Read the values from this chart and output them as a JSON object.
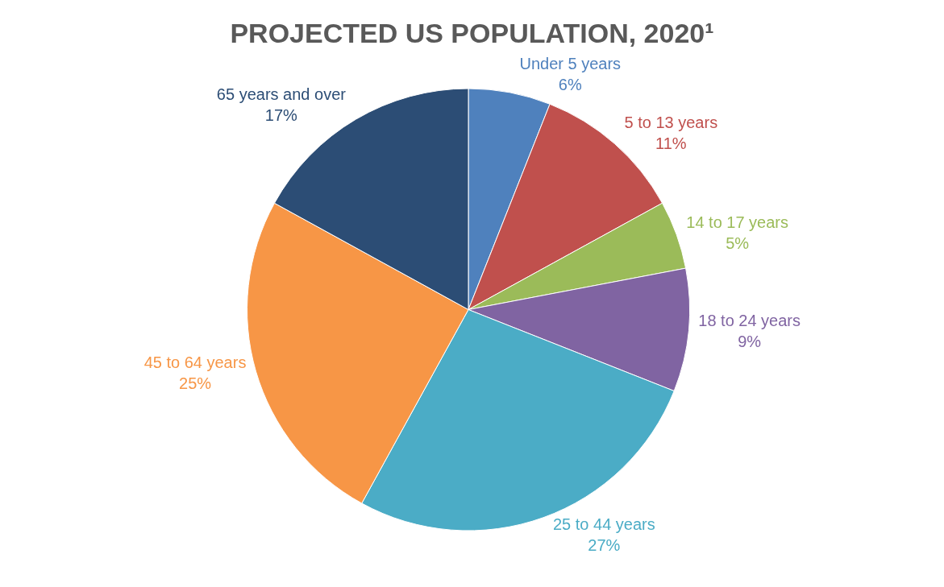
{
  "chart_data": {
    "type": "pie",
    "title": "PROJECTED US POPULATION, 2020¹",
    "categories": [
      "Under 5 years",
      "5 to 13 years",
      "14 to 17 years",
      "18 to 24 years",
      "25 to 44 years",
      "45 to 64 years",
      "65 years and over"
    ],
    "values": [
      6,
      11,
      5,
      9,
      27,
      25,
      17
    ],
    "value_labels": [
      "6%",
      "11%",
      "5%",
      "9%",
      "27%",
      "25%",
      "17%"
    ],
    "colors": [
      "#4f81bd",
      "#c0504d",
      "#9bbb59",
      "#8064a2",
      "#4bacc6",
      "#f79646",
      "#2c4d75"
    ],
    "legend": false
  }
}
